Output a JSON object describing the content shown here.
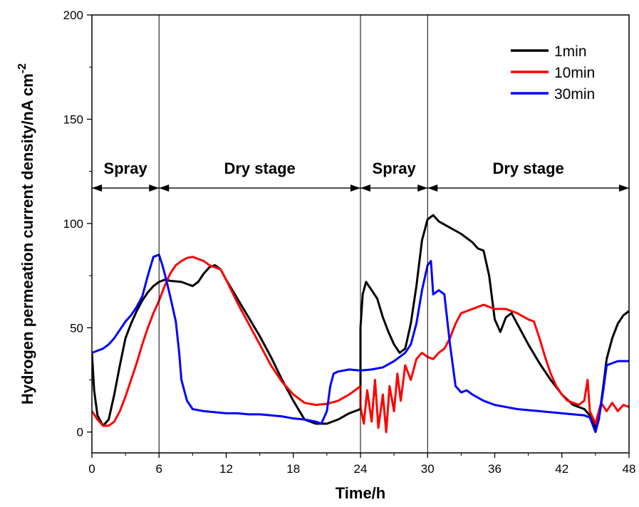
{
  "chart_data": {
    "type": "line",
    "xlabel": "Time/h",
    "ylabel": "Hydrogen permeation current density/nA cm",
    "ylabel_sup": "-2",
    "xlim": [
      0,
      48
    ],
    "ylim": [
      -10,
      200
    ],
    "xticks": [
      0,
      6,
      12,
      18,
      24,
      30,
      36,
      42,
      48
    ],
    "yticks": [
      0,
      50,
      100,
      150,
      200
    ],
    "grid": false,
    "legend_position": "top-right",
    "vlines": [
      6,
      24,
      30
    ],
    "regions": [
      {
        "label": "Spray",
        "x_start": 0,
        "x_end": 6
      },
      {
        "label": "Dry stage",
        "x_start": 6,
        "x_end": 24
      },
      {
        "label": "Spray",
        "x_start": 24,
        "x_end": 30
      },
      {
        "label": "Dry stage",
        "x_start": 30,
        "x_end": 48
      }
    ],
    "region_arrow_y": 117,
    "series": [
      {
        "name": "1min",
        "color": "#000000",
        "points": [
          [
            0,
            38
          ],
          [
            0.2,
            20
          ],
          [
            0.5,
            8
          ],
          [
            1,
            3
          ],
          [
            1.5,
            6
          ],
          [
            2,
            18
          ],
          [
            2.5,
            32
          ],
          [
            3,
            45
          ],
          [
            3.5,
            52
          ],
          [
            4,
            58
          ],
          [
            4.5,
            63
          ],
          [
            5,
            67
          ],
          [
            5.5,
            70
          ],
          [
            6,
            72
          ],
          [
            6.5,
            73
          ],
          [
            7,
            72.5
          ],
          [
            8,
            72
          ],
          [
            9,
            70
          ],
          [
            9.5,
            72
          ],
          [
            10,
            76
          ],
          [
            10.5,
            79
          ],
          [
            11,
            80
          ],
          [
            11.5,
            78
          ],
          [
            12,
            73
          ],
          [
            13,
            64
          ],
          [
            14,
            55
          ],
          [
            15,
            46
          ],
          [
            16,
            36
          ],
          [
            17,
            25
          ],
          [
            18,
            15
          ],
          [
            19,
            6
          ],
          [
            20,
            4
          ],
          [
            21,
            4
          ],
          [
            22,
            6
          ],
          [
            23,
            9
          ],
          [
            24,
            11
          ],
          [
            24,
            50
          ],
          [
            24.2,
            66
          ],
          [
            24.5,
            72
          ],
          [
            25,
            68
          ],
          [
            25.5,
            64
          ],
          [
            26,
            55
          ],
          [
            26.5,
            48
          ],
          [
            27,
            42
          ],
          [
            27.5,
            38
          ],
          [
            28,
            40
          ],
          [
            28.5,
            52
          ],
          [
            29,
            70
          ],
          [
            29.5,
            92
          ],
          [
            30,
            102
          ],
          [
            30.5,
            104
          ],
          [
            31,
            101
          ],
          [
            32,
            98
          ],
          [
            33,
            95
          ],
          [
            34,
            91
          ],
          [
            34.5,
            88
          ],
          [
            35,
            87
          ],
          [
            35.5,
            75
          ],
          [
            36,
            54
          ],
          [
            36.5,
            48
          ],
          [
            37,
            55
          ],
          [
            37.5,
            57
          ],
          [
            38,
            52
          ],
          [
            39,
            42
          ],
          [
            40,
            33
          ],
          [
            41,
            25
          ],
          [
            42,
            18
          ],
          [
            43,
            13
          ],
          [
            44,
            11
          ],
          [
            44.5,
            8
          ],
          [
            45,
            2
          ],
          [
            45.3,
            6
          ],
          [
            45.7,
            22
          ],
          [
            46,
            35
          ],
          [
            46.5,
            45
          ],
          [
            47,
            52
          ],
          [
            47.5,
            56
          ],
          [
            48,
            58
          ]
        ]
      },
      {
        "name": "10min",
        "color": "#ff0000",
        "points": [
          [
            0,
            10
          ],
          [
            0.5,
            6
          ],
          [
            1,
            3
          ],
          [
            1.5,
            3
          ],
          [
            2,
            5
          ],
          [
            2.5,
            10
          ],
          [
            3,
            17
          ],
          [
            3.5,
            25
          ],
          [
            4,
            33
          ],
          [
            4.5,
            42
          ],
          [
            5,
            50
          ],
          [
            5.5,
            57
          ],
          [
            6,
            63
          ],
          [
            6.5,
            70
          ],
          [
            7,
            76
          ],
          [
            7.5,
            80
          ],
          [
            8,
            82
          ],
          [
            8.5,
            83.5
          ],
          [
            9,
            84
          ],
          [
            9.5,
            83
          ],
          [
            10,
            82
          ],
          [
            10.5,
            80
          ],
          [
            11,
            79
          ],
          [
            11.5,
            78
          ],
          [
            12,
            73
          ],
          [
            13,
            62
          ],
          [
            14,
            52
          ],
          [
            15,
            42
          ],
          [
            16,
            32
          ],
          [
            17,
            24
          ],
          [
            18,
            18
          ],
          [
            19,
            14
          ],
          [
            20,
            13
          ],
          [
            21,
            13.5
          ],
          [
            22,
            15
          ],
          [
            23,
            18
          ],
          [
            24,
            22
          ],
          [
            24,
            12
          ],
          [
            24.3,
            4
          ],
          [
            24.6,
            20
          ],
          [
            25,
            5
          ],
          [
            25.3,
            25
          ],
          [
            25.6,
            2
          ],
          [
            26,
            18
          ],
          [
            26.3,
            0
          ],
          [
            26.6,
            22
          ],
          [
            27,
            10
          ],
          [
            27.3,
            28
          ],
          [
            27.6,
            15
          ],
          [
            28,
            32
          ],
          [
            28.5,
            25
          ],
          [
            29,
            35
          ],
          [
            29.5,
            38
          ],
          [
            30,
            36
          ],
          [
            30.5,
            35
          ],
          [
            31,
            38
          ],
          [
            31.5,
            40
          ],
          [
            32,
            45
          ],
          [
            32.5,
            52
          ],
          [
            33,
            57
          ],
          [
            33.5,
            58
          ],
          [
            34,
            59
          ],
          [
            34.5,
            60
          ],
          [
            35,
            61
          ],
          [
            35.5,
            60
          ],
          [
            36,
            59
          ],
          [
            37,
            59
          ],
          [
            38,
            57
          ],
          [
            39,
            54
          ],
          [
            39.5,
            53
          ],
          [
            40,
            45
          ],
          [
            40.5,
            36
          ],
          [
            41,
            28
          ],
          [
            41.5,
            22
          ],
          [
            42,
            18
          ],
          [
            42.5,
            15
          ],
          [
            43,
            14
          ],
          [
            43.5,
            13
          ],
          [
            44,
            15
          ],
          [
            44.3,
            25
          ],
          [
            44.5,
            10
          ],
          [
            45,
            4
          ],
          [
            45.5,
            14
          ],
          [
            46,
            10
          ],
          [
            46.5,
            14
          ],
          [
            47,
            10
          ],
          [
            47.5,
            13
          ],
          [
            48,
            12
          ]
        ]
      },
      {
        "name": "30min",
        "color": "#0000ff",
        "points": [
          [
            0,
            38
          ],
          [
            0.5,
            39
          ],
          [
            1,
            40
          ],
          [
            1.5,
            42
          ],
          [
            2,
            45
          ],
          [
            2.5,
            49
          ],
          [
            3,
            53
          ],
          [
            3.5,
            56
          ],
          [
            4,
            60
          ],
          [
            4.5,
            65
          ],
          [
            5,
            75
          ],
          [
            5.5,
            84
          ],
          [
            6,
            85
          ],
          [
            6.3,
            80
          ],
          [
            6.6,
            74
          ],
          [
            7,
            65
          ],
          [
            7.5,
            53
          ],
          [
            7.8,
            38
          ],
          [
            8,
            25
          ],
          [
            8.5,
            15
          ],
          [
            9,
            11
          ],
          [
            10,
            10
          ],
          [
            11,
            9.5
          ],
          [
            12,
            9
          ],
          [
            13,
            9
          ],
          [
            14,
            8.5
          ],
          [
            15,
            8.5
          ],
          [
            16,
            8
          ],
          [
            17,
            7.5
          ],
          [
            18,
            6.5
          ],
          [
            19,
            6
          ],
          [
            20,
            5
          ],
          [
            20.5,
            4
          ],
          [
            21,
            10
          ],
          [
            21.3,
            22
          ],
          [
            21.6,
            28
          ],
          [
            22,
            29
          ],
          [
            23,
            30
          ],
          [
            24,
            29.5
          ],
          [
            25,
            30
          ],
          [
            26,
            31
          ],
          [
            27,
            34
          ],
          [
            28,
            38
          ],
          [
            28.5,
            42
          ],
          [
            29,
            52
          ],
          [
            29.5,
            68
          ],
          [
            30,
            80
          ],
          [
            30.3,
            82
          ],
          [
            30.5,
            66
          ],
          [
            31,
            68
          ],
          [
            31.5,
            66
          ],
          [
            32,
            42
          ],
          [
            32.5,
            22
          ],
          [
            33,
            19
          ],
          [
            33.5,
            20
          ],
          [
            34,
            18
          ],
          [
            35,
            15
          ],
          [
            36,
            13
          ],
          [
            37,
            12
          ],
          [
            38,
            11
          ],
          [
            39,
            10.5
          ],
          [
            40,
            10
          ],
          [
            41,
            9.5
          ],
          [
            42,
            9
          ],
          [
            43,
            8.5
          ],
          [
            44,
            8
          ],
          [
            44.5,
            7
          ],
          [
            45,
            0
          ],
          [
            45.3,
            6
          ],
          [
            45.7,
            20
          ],
          [
            46,
            32
          ],
          [
            47,
            34
          ],
          [
            48,
            34
          ]
        ]
      }
    ]
  }
}
